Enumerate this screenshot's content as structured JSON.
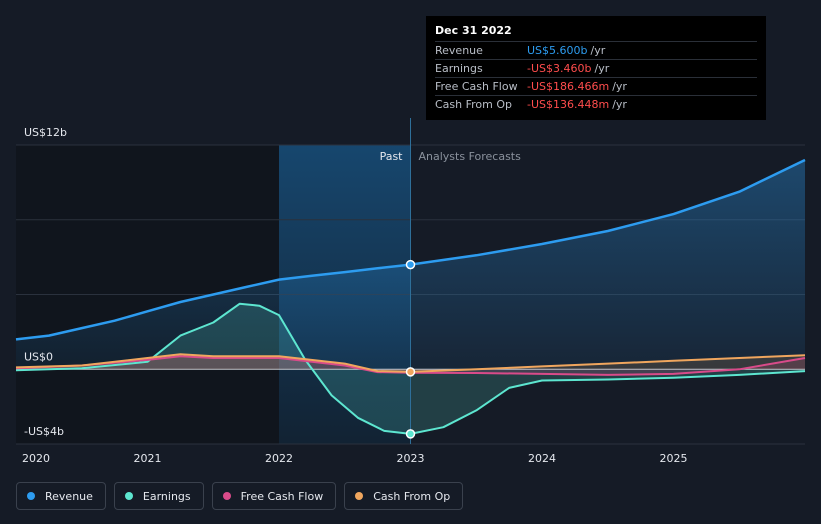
{
  "tooltip": {
    "date": "Dec 31 2022",
    "rows": [
      {
        "label": "Revenue",
        "value": "US$5.600b",
        "unit": "/yr",
        "color": "#2d9cf0"
      },
      {
        "label": "Earnings",
        "value": "-US$3.460b",
        "unit": "/yr",
        "color": "#ff4d4d"
      },
      {
        "label": "Free Cash Flow",
        "value": "-US$186.466m",
        "unit": "/yr",
        "color": "#ff4d4d"
      },
      {
        "label": "Cash From Op",
        "value": "-US$136.448m",
        "unit": "/yr",
        "color": "#ff4d4d"
      }
    ]
  },
  "chart_data": {
    "type": "line",
    "y_axis_labels": [
      "US$12b",
      "US$0",
      "-US$4b"
    ],
    "ylim": [
      -4,
      12
    ],
    "xlim": [
      2020,
      2026
    ],
    "x_tick_labels": [
      "2020",
      "2021",
      "2022",
      "2023",
      "2024",
      "2025"
    ],
    "x_ticks": [
      2020,
      2021,
      2022,
      2023,
      2024,
      2025
    ],
    "past_label": "Past",
    "forecast_label": "Analysts Forecasts",
    "past_end": 2023,
    "highlight_start": 2022,
    "series": [
      {
        "name": "Revenue",
        "color": "#2d9cf0",
        "points": [
          [
            2020,
            1.6
          ],
          [
            2020.25,
            1.8
          ],
          [
            2020.5,
            2.2
          ],
          [
            2020.75,
            2.6
          ],
          [
            2021,
            3.1
          ],
          [
            2021.25,
            3.6
          ],
          [
            2021.5,
            4.0
          ],
          [
            2021.75,
            4.4
          ],
          [
            2022,
            4.8
          ],
          [
            2022.25,
            5.0
          ],
          [
            2022.5,
            5.2
          ],
          [
            2022.75,
            5.4
          ],
          [
            2023,
            5.6
          ],
          [
            2023.5,
            6.1
          ],
          [
            2024,
            6.7
          ],
          [
            2024.5,
            7.4
          ],
          [
            2025,
            8.3
          ],
          [
            2025.5,
            9.5
          ],
          [
            2026,
            11.2
          ]
        ]
      },
      {
        "name": "Earnings",
        "color": "#5de6d0",
        "points": [
          [
            2020,
            -0.05
          ],
          [
            2020.5,
            0.05
          ],
          [
            2021,
            0.4
          ],
          [
            2021.25,
            1.8
          ],
          [
            2021.5,
            2.5
          ],
          [
            2021.7,
            3.5
          ],
          [
            2021.85,
            3.4
          ],
          [
            2022,
            2.9
          ],
          [
            2022.2,
            0.5
          ],
          [
            2022.4,
            -1.4
          ],
          [
            2022.6,
            -2.6
          ],
          [
            2022.8,
            -3.3
          ],
          [
            2023,
            -3.46
          ],
          [
            2023.25,
            -3.1
          ],
          [
            2023.5,
            -2.2
          ],
          [
            2023.75,
            -1.0
          ],
          [
            2024,
            -0.6
          ],
          [
            2024.5,
            -0.55
          ],
          [
            2025,
            -0.45
          ],
          [
            2025.5,
            -0.3
          ],
          [
            2026,
            -0.1
          ]
        ]
      },
      {
        "name": "Free Cash Flow",
        "color": "#d94b8a",
        "points": [
          [
            2020,
            0.05
          ],
          [
            2020.5,
            0.2
          ],
          [
            2021,
            0.5
          ],
          [
            2021.25,
            0.7
          ],
          [
            2021.5,
            0.6
          ],
          [
            2022,
            0.6
          ],
          [
            2022.5,
            0.2
          ],
          [
            2022.75,
            -0.15
          ],
          [
            2023,
            -0.19
          ],
          [
            2023.5,
            -0.2
          ],
          [
            2024,
            -0.25
          ],
          [
            2024.5,
            -0.3
          ],
          [
            2025,
            -0.25
          ],
          [
            2025.5,
            0.0
          ],
          [
            2026,
            0.6
          ]
        ]
      },
      {
        "name": "Cash From Op",
        "color": "#f0a65e",
        "points": [
          [
            2020,
            0.1
          ],
          [
            2020.5,
            0.2
          ],
          [
            2021,
            0.6
          ],
          [
            2021.25,
            0.8
          ],
          [
            2021.5,
            0.7
          ],
          [
            2022,
            0.7
          ],
          [
            2022.5,
            0.3
          ],
          [
            2022.75,
            -0.1
          ],
          [
            2023,
            -0.14
          ],
          [
            2023.5,
            0.0
          ],
          [
            2024,
            0.15
          ],
          [
            2024.5,
            0.3
          ],
          [
            2025,
            0.45
          ],
          [
            2025.5,
            0.6
          ],
          [
            2026,
            0.75
          ]
        ]
      }
    ],
    "markers": [
      {
        "series": "Revenue",
        "x": 2023,
        "y": 5.6
      },
      {
        "series": "Earnings",
        "x": 2023,
        "y": -3.46
      },
      {
        "series": "Cash From Op",
        "x": 2023,
        "y": -0.14
      }
    ]
  },
  "legend": [
    {
      "label": "Revenue",
      "color": "#2d9cf0"
    },
    {
      "label": "Earnings",
      "color": "#5de6d0"
    },
    {
      "label": "Free Cash Flow",
      "color": "#d94b8a"
    },
    {
      "label": "Cash From Op",
      "color": "#f0a65e"
    }
  ]
}
